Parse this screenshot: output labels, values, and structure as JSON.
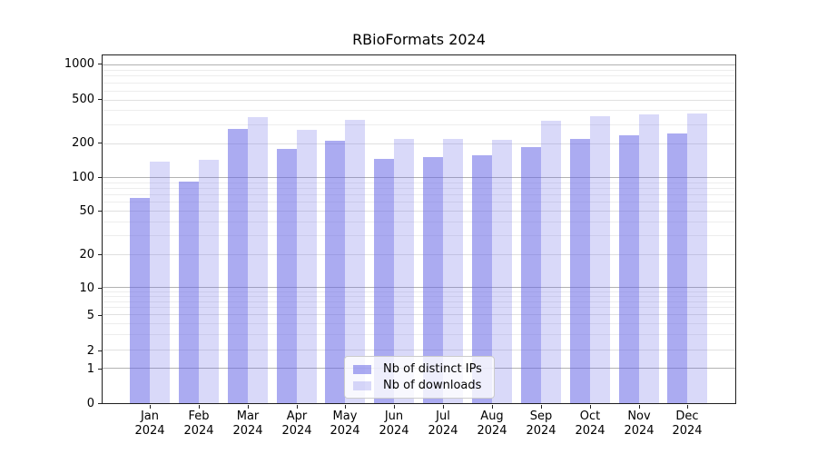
{
  "title": "RBioFormats 2024",
  "chart_data": {
    "type": "bar",
    "title": "RBioFormats 2024",
    "x_categories": [
      {
        "month": "Jan",
        "year": "2024"
      },
      {
        "month": "Feb",
        "year": "2024"
      },
      {
        "month": "Mar",
        "year": "2024"
      },
      {
        "month": "Apr",
        "year": "2024"
      },
      {
        "month": "May",
        "year": "2024"
      },
      {
        "month": "Jun",
        "year": "2024"
      },
      {
        "month": "Jul",
        "year": "2024"
      },
      {
        "month": "Aug",
        "year": "2024"
      },
      {
        "month": "Sep",
        "year": "2024"
      },
      {
        "month": "Oct",
        "year": "2024"
      },
      {
        "month": "Nov",
        "year": "2024"
      },
      {
        "month": "Dec",
        "year": "2024"
      }
    ],
    "series": [
      {
        "name": "Nb of distinct IPs",
        "color_hex": "#6666e6",
        "alpha": 0.55,
        "values": [
          66,
          94,
          278,
          182,
          215,
          149,
          153,
          161,
          188,
          225,
          239,
          249
        ]
      },
      {
        "name": "Nb of downloads",
        "color_hex": "#6666e6",
        "alpha": 0.25,
        "values": [
          139,
          146,
          353,
          272,
          334,
          225,
          222,
          219,
          325,
          362,
          376,
          384
        ]
      }
    ],
    "yscale": "symlog",
    "y_ticks": [
      0,
      1,
      2,
      5,
      10,
      20,
      50,
      100,
      200,
      500,
      1000
    ],
    "ylim": [
      0,
      1200
    ],
    "grid": true,
    "legend_position": "lower center"
  }
}
